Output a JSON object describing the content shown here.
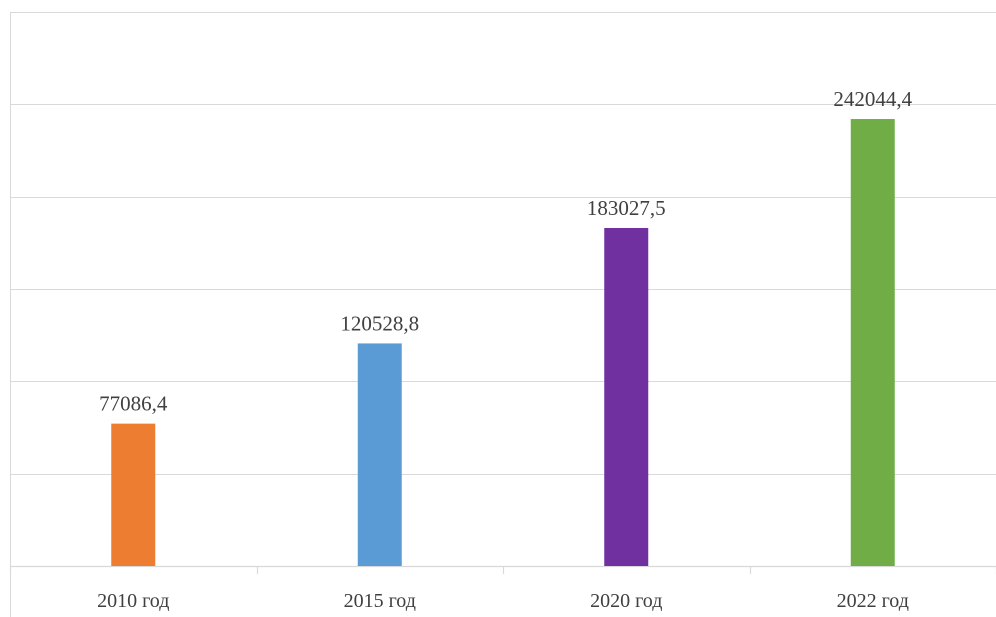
{
  "chart_data": {
    "type": "bar",
    "categories": [
      "2010 год",
      "2015 год",
      "2020 год",
      "2022 год"
    ],
    "values": [
      77086.4,
      120528.8,
      183027.5,
      242044.4
    ],
    "value_labels": [
      "77086,4",
      "120528,8",
      "183027,5",
      "242044,4"
    ],
    "colors": [
      "#ed7d31",
      "#5b9bd5",
      "#7030a0",
      "#70ad47"
    ],
    "title": "",
    "xlabel": "",
    "ylabel": "",
    "ylim": [
      0,
      300000
    ],
    "y_tick_step": 50000,
    "y_tick_labels_visible": false,
    "grid": true,
    "legend": "none"
  }
}
